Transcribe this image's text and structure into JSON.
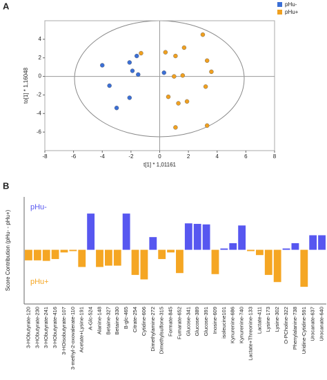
{
  "chart_data": [
    {
      "type": "scatter",
      "panel_label": "A",
      "xlabel": "t[1] * 1,01161",
      "ylabel": "to[1] * 1,16048",
      "xlim": [
        -8,
        8
      ],
      "xticks": [
        -8,
        -6,
        -4,
        -2,
        0,
        2,
        4,
        6,
        8
      ],
      "ylim": [
        -8,
        6
      ],
      "yticks": [
        -6,
        -4,
        -2,
        0,
        2,
        4
      ],
      "series": [
        {
          "name": "pHu-",
          "color": "#3b6fd6",
          "x": [
            -4.0,
            -1.6,
            -2.1,
            -1.9,
            -1.5,
            -3.5,
            -2.1,
            -3.0,
            0.3
          ],
          "values": [
            1.2,
            2.2,
            1.5,
            0.6,
            0.2,
            -1.0,
            -2.3,
            -3.4,
            0.4
          ]
        },
        {
          "name": "pHu+",
          "color": "#f0a020",
          "x": [
            -1.3,
            0.4,
            3.0,
            1.7,
            1.1,
            3.3,
            3.6,
            1.0,
            1.6,
            0.6,
            1.9,
            1.3,
            3.2,
            1.1,
            3.3
          ],
          "values": [
            2.5,
            2.6,
            4.5,
            3.1,
            2.2,
            1.7,
            0.5,
            0.0,
            0.1,
            -2.2,
            -2.7,
            -2.9,
            -1.1,
            -5.5,
            -5.3
          ]
        }
      ]
    },
    {
      "type": "bar",
      "panel_label": "B",
      "ylabel": "Score Contribution (pHu- - pHu+)",
      "annotations": [
        "pHu-",
        "pHu+"
      ],
      "positive_color": "#5757f0",
      "negative_color": "#f5a623",
      "ylim": [
        -2.05,
        2.0
      ],
      "categories": [
        "3-HObutyrate-120",
        "3-HObutyrate-230",
        "3-HObutyrate-241",
        "3-HObutyrate-416",
        "3-HOisobutyrate-107",
        "3-methyl-2-oxovalerate-110",
        "Acetate+Lysine-191",
        "A-Glc-524",
        "Alanine-148",
        "Betaine-327",
        "Betaine-330",
        "B-glc-465",
        "Citrate-254",
        "Cytidine-606",
        "Dimethylamine-272",
        "Dimethylsulfone-315",
        "Formate-845",
        "Fumarate-652",
        "Glucose-341",
        "Glucose-389",
        "Glucose-391",
        "Inosine-609",
        "isoleucine101",
        "Kynurenine-686",
        "Kynurenine-740",
        "Lactate+Threonine-133",
        "Lactate-411",
        "Lysine-173",
        "Lysine-302",
        "O-PCholine-322",
        "Phenylalanine-738",
        "Uridine-Cytidine-591",
        "Urocanate-637",
        "Urocanate-640"
      ],
      "values": [
        -0.4,
        -0.4,
        -0.42,
        -0.35,
        -0.1,
        -0.05,
        -0.65,
        1.37,
        -0.65,
        -0.6,
        -0.6,
        1.37,
        -0.95,
        -1.12,
        0.48,
        -0.35,
        -0.1,
        -0.88,
        1.0,
        0.98,
        0.96,
        -0.92,
        0.05,
        0.25,
        0.92,
        -0.05,
        -0.2,
        -0.95,
        -1.22,
        0.05,
        0.25,
        -1.4,
        0.55,
        0.55
      ]
    }
  ]
}
